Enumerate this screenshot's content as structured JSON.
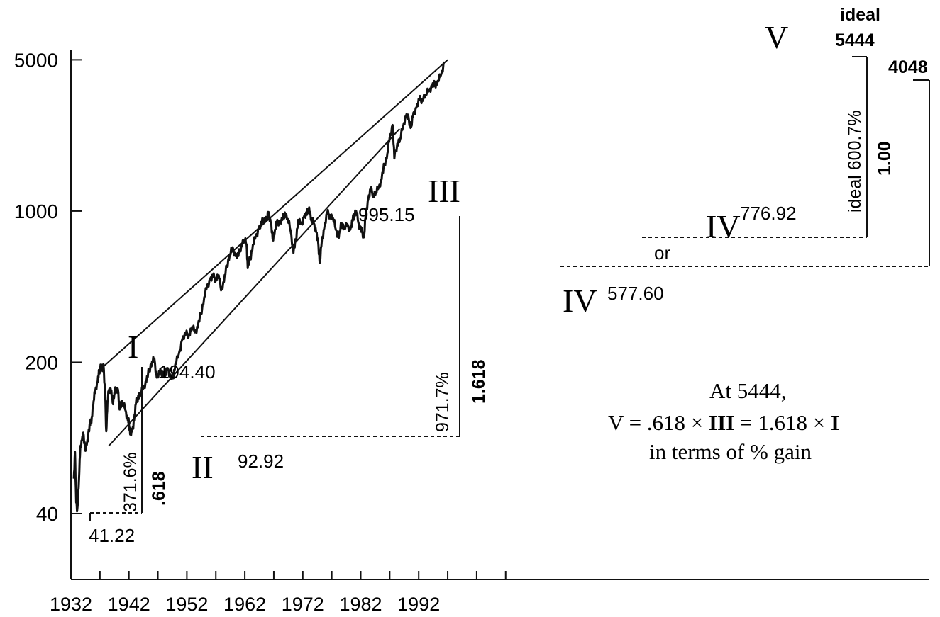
{
  "chart_data": {
    "type": "line",
    "scale": "log",
    "x_ticks": [
      "1932",
      "1942",
      "1952",
      "1962",
      "1972",
      "1982",
      "1992"
    ],
    "y_ticks": [
      "40",
      "200",
      "1000",
      "5000"
    ],
    "series": [
      {
        "values": [
          [
            1932.5,
            58
          ],
          [
            1932.7,
            77
          ],
          [
            1932.9,
            45
          ],
          [
            1933.1,
            42
          ],
          [
            1933.4,
            58
          ],
          [
            1933.6,
            80
          ],
          [
            1933.9,
            87
          ],
          [
            1934.2,
            92
          ],
          [
            1934.5,
            78
          ],
          [
            1934.8,
            86
          ],
          [
            1935.0,
            94
          ],
          [
            1935.3,
            102
          ],
          [
            1935.6,
            112
          ],
          [
            1935.9,
            132
          ],
          [
            1936.2,
            148
          ],
          [
            1936.6,
            162
          ],
          [
            1936.9,
            182
          ],
          [
            1937.1,
            195
          ],
          [
            1937.3,
            184
          ],
          [
            1937.6,
            196
          ],
          [
            1937.9,
            140
          ],
          [
            1938.1,
            96
          ],
          [
            1938.3,
            132
          ],
          [
            1938.6,
            150
          ],
          [
            1938.9,
            148
          ],
          [
            1939.2,
            130
          ],
          [
            1939.5,
            145
          ],
          [
            1939.8,
            152
          ],
          [
            1940.1,
            150
          ],
          [
            1940.4,
            121
          ],
          [
            1940.7,
            132
          ],
          [
            1941.0,
            128
          ],
          [
            1941.4,
            120
          ],
          [
            1941.8,
            108
          ],
          [
            1942.0,
            105
          ],
          [
            1942.3,
            92.92
          ],
          [
            1942.6,
            98
          ],
          [
            1942.9,
            108
          ],
          [
            1943.2,
            128
          ],
          [
            1943.6,
            140
          ],
          [
            1944.0,
            142
          ],
          [
            1944.5,
            152
          ],
          [
            1945.0,
            162
          ],
          [
            1945.5,
            185
          ],
          [
            1946.0,
            202
          ],
          [
            1946.4,
            208
          ],
          [
            1946.8,
            170
          ],
          [
            1947.3,
            178
          ],
          [
            1947.8,
            181
          ],
          [
            1948.2,
            172
          ],
          [
            1948.7,
            188
          ],
          [
            1949.2,
            168
          ],
          [
            1949.6,
            170
          ],
          [
            1950.0,
            196
          ],
          [
            1950.6,
            218
          ],
          [
            1951.2,
            255
          ],
          [
            1951.8,
            268
          ],
          [
            1952.4,
            270
          ],
          [
            1952.9,
            291
          ],
          [
            1953.4,
            275
          ],
          [
            1953.9,
            290
          ],
          [
            1954.4,
            335
          ],
          [
            1955.0,
            400
          ],
          [
            1955.5,
            455
          ],
          [
            1956.0,
            480
          ],
          [
            1956.5,
            495
          ],
          [
            1957.0,
            490
          ],
          [
            1957.5,
            505
          ],
          [
            1957.9,
            430
          ],
          [
            1958.4,
            470
          ],
          [
            1958.9,
            560
          ],
          [
            1959.4,
            630
          ],
          [
            1959.9,
            680
          ],
          [
            1960.4,
            620
          ],
          [
            1960.9,
            620
          ],
          [
            1961.4,
            700
          ],
          [
            1961.9,
            735
          ],
          [
            1962.3,
            700
          ],
          [
            1962.5,
            545
          ],
          [
            1962.9,
            600
          ],
          [
            1963.4,
            700
          ],
          [
            1963.9,
            770
          ],
          [
            1964.4,
            825
          ],
          [
            1964.9,
            875
          ],
          [
            1965.4,
            930
          ],
          [
            1965.8,
            910
          ],
          [
            1966.1,
            990
          ],
          [
            1966.5,
            870
          ],
          [
            1966.8,
            744
          ],
          [
            1967.2,
            820
          ],
          [
            1967.6,
            910
          ],
          [
            1968.0,
            880
          ],
          [
            1968.5,
            910
          ],
          [
            1968.9,
            985
          ],
          [
            1969.4,
            920
          ],
          [
            1969.9,
            810
          ],
          [
            1970.4,
            640
          ],
          [
            1970.8,
            735
          ],
          [
            1971.2,
            910
          ],
          [
            1971.7,
            870
          ],
          [
            1972.2,
            940
          ],
          [
            1972.7,
            960
          ],
          [
            1973.1,
            1040
          ],
          [
            1973.5,
            900
          ],
          [
            1973.9,
            880
          ],
          [
            1974.3,
            800
          ],
          [
            1974.7,
            690
          ],
          [
            1974.95,
            577.6
          ],
          [
            1975.3,
            740
          ],
          [
            1975.7,
            830
          ],
          [
            1976.2,
            975
          ],
          [
            1976.7,
            960
          ],
          [
            1977.2,
            930
          ],
          [
            1977.7,
            820
          ],
          [
            1978.2,
            750
          ],
          [
            1978.7,
            880
          ],
          [
            1979.2,
            840
          ],
          [
            1979.7,
            870
          ],
          [
            1980.2,
            820
          ],
          [
            1980.6,
            900
          ],
          [
            1980.9,
            970
          ],
          [
            1981.2,
            1000
          ],
          [
            1981.6,
            880
          ],
          [
            1981.9,
            830
          ],
          [
            1982.3,
            790
          ],
          [
            1982.6,
            776.92
          ],
          [
            1982.9,
            1000
          ],
          [
            1983.3,
            1130
          ],
          [
            1983.7,
            1250
          ],
          [
            1984.2,
            1200
          ],
          [
            1984.6,
            1210
          ],
          [
            1985.1,
            1280
          ],
          [
            1985.6,
            1400
          ],
          [
            1986.1,
            1650
          ],
          [
            1986.6,
            1850
          ],
          [
            1987.0,
            2200
          ],
          [
            1987.5,
            2500
          ],
          [
            1987.8,
            1750
          ],
          [
            1988.3,
            2050
          ],
          [
            1988.8,
            2150
          ],
          [
            1989.3,
            2450
          ],
          [
            1989.8,
            2750
          ],
          [
            1990.3,
            2650
          ],
          [
            1990.7,
            2450
          ],
          [
            1991.1,
            2850
          ],
          [
            1991.6,
            3000
          ],
          [
            1992.1,
            3250
          ],
          [
            1992.6,
            3300
          ],
          [
            1993.2,
            3450
          ],
          [
            1993.8,
            3600
          ],
          [
            1994.3,
            3750
          ],
          [
            1994.8,
            3850
          ],
          [
            1995.3,
            4000
          ],
          [
            1995.9,
            4300
          ],
          [
            1996.4,
            4900
          ]
        ]
      }
    ],
    "trendlines": [
      {
        "from": [
          1936.7,
          182
        ],
        "to": [
          1997.0,
          5000
        ]
      },
      {
        "from": [
          1938.5,
          82
        ],
        "to": [
          1988.7,
          2400
        ]
      }
    ]
  },
  "annotations": {
    "wave_1": "I",
    "wave_2": "II",
    "wave_3": "III",
    "wave_4": "IV",
    "wave_5": "V",
    "level_wave1_low": "41.22",
    "level_wave1_high": "194.40",
    "level_wave2": "92.92",
    "level_wave3": "995.15",
    "level_wave4_a": "776.92",
    "level_wave4_b": "577.60",
    "or_label": "or",
    "pct_wave1": "371.6%",
    "ratio_wave1": ".618",
    "pct_wave3": "971.7%",
    "ratio_wave3": "1.618",
    "pct_wave5_ideal": "ideal 600.7%",
    "ratio_wave5": "1.00",
    "ideal_label": "ideal",
    "ideal_value": "5444",
    "target_4048": "4048",
    "note_line1": "At 5444,",
    "note_line2_prefix": "V = .618 × ",
    "note_line2_mid_bold": "III",
    "note_line2_mid": " = 1.618 × ",
    "note_line2_end_bold": "I",
    "note_line3": "in terms of % gain"
  }
}
